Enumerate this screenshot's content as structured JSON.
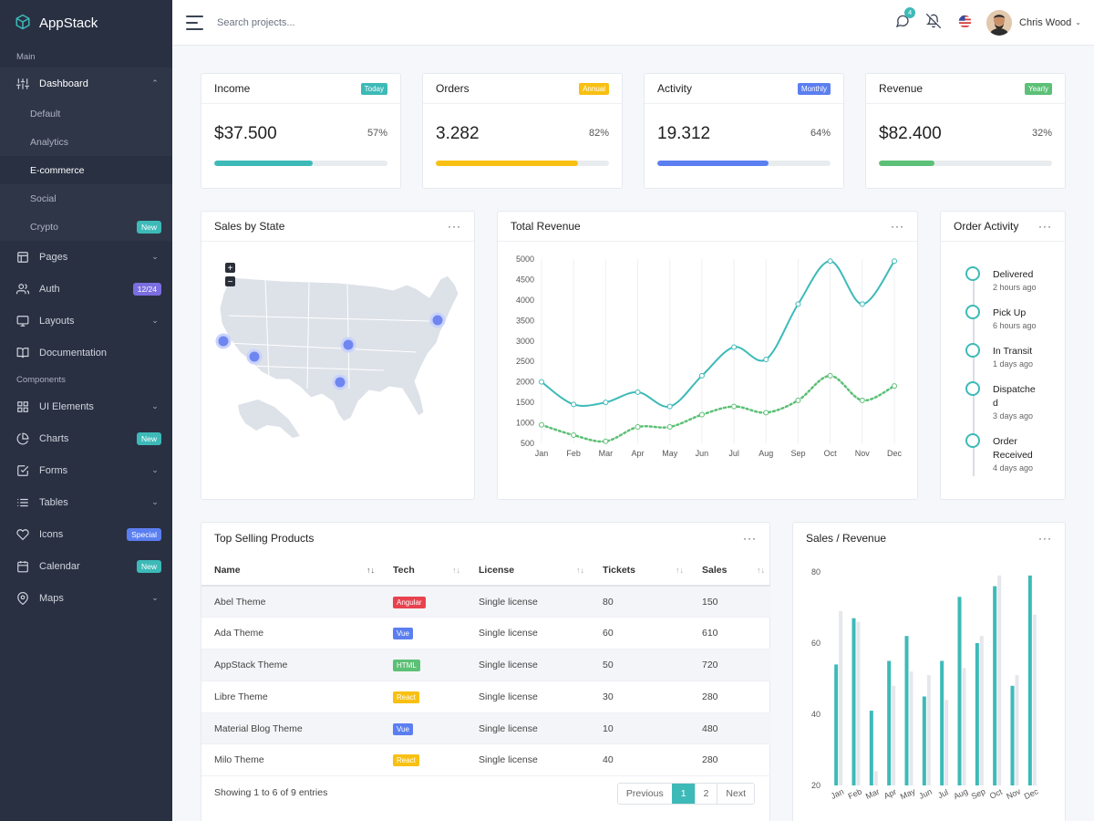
{
  "brand": {
    "name": "AppStack"
  },
  "sidebar": {
    "section_main": "Main",
    "section_components": "Components",
    "dashboard": {
      "label": "Dashboard",
      "icon": "sliders-icon"
    },
    "sub": [
      {
        "label": "Default"
      },
      {
        "label": "Analytics"
      },
      {
        "label": "E-commerce"
      },
      {
        "label": "Social"
      },
      {
        "label": "Crypto",
        "badge": "New"
      }
    ],
    "items_main": [
      {
        "label": "Pages",
        "icon": "layout-icon"
      },
      {
        "label": "Auth",
        "icon": "users-icon",
        "badge": "12/24"
      },
      {
        "label": "Layouts",
        "icon": "monitor-icon"
      },
      {
        "label": "Documentation",
        "icon": "book-icon"
      }
    ],
    "items_components": [
      {
        "label": "UI Elements",
        "icon": "grid-icon"
      },
      {
        "label": "Charts",
        "icon": "pie-chart-icon",
        "badge": "New"
      },
      {
        "label": "Forms",
        "icon": "check-square-icon"
      },
      {
        "label": "Tables",
        "icon": "list-icon"
      },
      {
        "label": "Icons",
        "icon": "heart-icon",
        "badge": "Special"
      },
      {
        "label": "Calendar",
        "icon": "calendar-icon",
        "badge": "New"
      },
      {
        "label": "Maps",
        "icon": "map-pin-icon"
      }
    ]
  },
  "topbar": {
    "search_placeholder": "Search projects...",
    "notification_count": "4",
    "user_name": "Chris Wood"
  },
  "stats": [
    {
      "title": "Income",
      "badge": "Today",
      "badge_color": "#3dbab8",
      "value": "$37.500",
      "pct": "57%",
      "progress": 0.57,
      "bar_color": "#3dbab8"
    },
    {
      "title": "Orders",
      "badge": "Annual",
      "badge_color": "#f8c012",
      "value": "3.282",
      "pct": "82%",
      "progress": 0.82,
      "bar_color": "#f8c012"
    },
    {
      "title": "Activity",
      "badge": "Monthly",
      "badge_color": "#5b7ff0",
      "value": "19.312",
      "pct": "64%",
      "progress": 0.64,
      "bar_color": "#5b7ff0"
    },
    {
      "title": "Revenue",
      "badge": "Yearly",
      "badge_color": "#5cc076",
      "value": "$82.400",
      "pct": "32%",
      "progress": 0.32,
      "bar_color": "#5cc076"
    }
  ],
  "sales_by_state": {
    "title": "Sales by State",
    "zoom_in": "+",
    "zoom_out": "−"
  },
  "total_revenue": {
    "title": "Total Revenue"
  },
  "order_activity": {
    "title": "Order Activity",
    "items": [
      {
        "title": "Delivered",
        "time": "2 hours ago"
      },
      {
        "title": "Pick Up",
        "time": "6 hours ago"
      },
      {
        "title": "In Transit",
        "time": "1 days ago"
      },
      {
        "title": "Dispatched",
        "time": "3 days ago"
      },
      {
        "title": "Order Received",
        "time": "4 days ago"
      }
    ]
  },
  "top_products": {
    "title": "Top Selling Products",
    "columns": [
      "Name",
      "Tech",
      "License",
      "Tickets",
      "Sales"
    ],
    "rows": [
      {
        "name": "Abel Theme",
        "tech": "Angular",
        "tech_color": "#e8424f",
        "license": "Single license",
        "tickets": "80",
        "sales": "150"
      },
      {
        "name": "Ada Theme",
        "tech": "Vue",
        "tech_color": "#5b7ff0",
        "license": "Single license",
        "tickets": "60",
        "sales": "610"
      },
      {
        "name": "AppStack Theme",
        "tech": "HTML",
        "tech_color": "#5cc076",
        "license": "Single license",
        "tickets": "50",
        "sales": "720"
      },
      {
        "name": "Libre Theme",
        "tech": "React",
        "tech_color": "#f8c012",
        "license": "Single license",
        "tickets": "30",
        "sales": "280"
      },
      {
        "name": "Material Blog Theme",
        "tech": "Vue",
        "tech_color": "#5b7ff0",
        "license": "Single license",
        "tickets": "10",
        "sales": "480"
      },
      {
        "name": "Milo Theme",
        "tech": "React",
        "tech_color": "#f8c012",
        "license": "Single license",
        "tickets": "40",
        "sales": "280"
      }
    ],
    "footer": "Showing 1 to 6 of 9 entries",
    "pager": {
      "prev": "Previous",
      "p1": "1",
      "p2": "2",
      "next": "Next"
    }
  },
  "sales_revenue": {
    "title": "Sales / Revenue"
  },
  "chart_data": [
    {
      "type": "line",
      "title": "Total Revenue",
      "categories": [
        "Jan",
        "Feb",
        "Mar",
        "Apr",
        "May",
        "Jun",
        "Jul",
        "Aug",
        "Sep",
        "Oct",
        "Nov",
        "Dec"
      ],
      "ylim": [
        500,
        5000
      ],
      "yticks": [
        500,
        1000,
        1500,
        2000,
        2500,
        3000,
        3500,
        4000,
        4500,
        5000
      ],
      "series": [
        {
          "values": [
            2000,
            1450,
            1500,
            1750,
            1400,
            2150,
            2850,
            2550,
            3900,
            4950,
            3900,
            4950
          ],
          "color": "#3dbab8",
          "style": "solid"
        },
        {
          "values": [
            950,
            700,
            550,
            900,
            900,
            1200,
            1400,
            1250,
            1550,
            2150,
            1550,
            1900
          ],
          "color": "#5cc076",
          "style": "dotted"
        }
      ]
    },
    {
      "type": "bar",
      "title": "Sales / Revenue",
      "categories": [
        "Jan",
        "Feb",
        "Mar",
        "Apr",
        "May",
        "Jun",
        "Jul",
        "Aug",
        "Sep",
        "Oct",
        "Nov",
        "Dec"
      ],
      "ylim": [
        20,
        80
      ],
      "yticks": [
        20,
        40,
        60,
        80
      ],
      "series": [
        {
          "values": [
            54,
            67,
            41,
            55,
            62,
            45,
            55,
            73,
            60,
            76,
            48,
            79
          ],
          "color": "#3dbab8"
        },
        {
          "values": [
            69,
            66,
            24,
            48,
            52,
            51,
            44,
            53,
            62,
            79,
            51,
            68
          ],
          "color": "#e5e7ec"
        }
      ]
    }
  ]
}
